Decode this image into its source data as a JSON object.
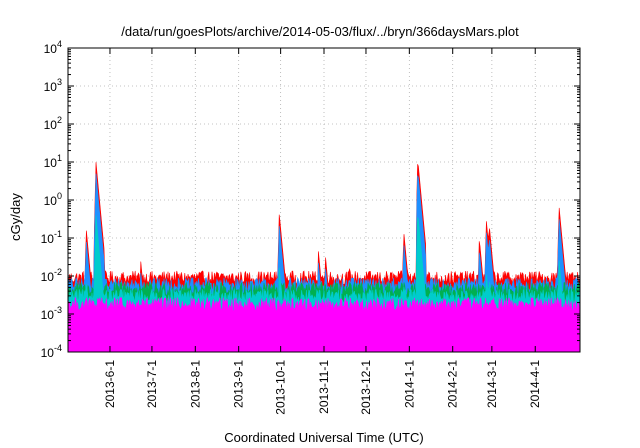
{
  "chart_data": {
    "type": "area",
    "title": "/data/run/goesPlots/archive/2014-05-03/flux/../bryn/366daysMars.plot",
    "xlabel": "Coordinated Universal Time (UTC)",
    "ylabel": "cGy/day",
    "y_scale": "log",
    "ylim": [
      0.0001,
      10000
    ],
    "xlim": [
      "2013-05-02",
      "2014-05-03"
    ],
    "y_ticks": [
      {
        "value": 0.0001,
        "label": "10^-4"
      },
      {
        "value": 0.001,
        "label": "10^-3"
      },
      {
        "value": 0.01,
        "label": "10^-2"
      },
      {
        "value": 0.1,
        "label": "10^-1"
      },
      {
        "value": 1,
        "label": "10^0"
      },
      {
        "value": 10,
        "label": "10^1"
      },
      {
        "value": 100,
        "label": "10^2"
      },
      {
        "value": 1000,
        "label": "10^3"
      },
      {
        "value": 10000,
        "label": "10^4"
      }
    ],
    "x_ticks": [
      "2013-6-1",
      "2013-7-1",
      "2013-8-1",
      "2013-9-1",
      "2013-10-1",
      "2013-11-1",
      "2013-12-1",
      "2014-1-1",
      "2014-2-1",
      "2014-3-1",
      "2014-4-1"
    ],
    "x_tick_dates": [
      "2013-06-01",
      "2013-07-01",
      "2013-08-01",
      "2013-09-01",
      "2013-10-01",
      "2013-11-01",
      "2013-12-01",
      "2014-01-01",
      "2014-02-01",
      "2014-03-01",
      "2014-04-01"
    ],
    "grid": true,
    "legend": "none",
    "baseline_levels": [
      0.009,
      0.006,
      0.0045,
      0.003,
      0.0018
    ],
    "noise_decades": 0.18,
    "events": [
      {
        "date": "2013-05-15",
        "peak": 0.18
      },
      {
        "date": "2013-05-22",
        "peak": 10
      },
      {
        "date": "2013-06-23",
        "peak": 0.025
      },
      {
        "date": "2013-09-30",
        "peak": 0.45
      },
      {
        "date": "2013-10-28",
        "peak": 0.045
      },
      {
        "date": "2013-11-02",
        "peak": 0.035
      },
      {
        "date": "2013-11-19",
        "peak": 0.02
      },
      {
        "date": "2013-12-28",
        "peak": 0.15
      },
      {
        "date": "2014-01-07",
        "peak": 12
      },
      {
        "date": "2014-02-20",
        "peak": 0.1
      },
      {
        "date": "2014-02-25",
        "peak": 0.3
      },
      {
        "date": "2014-02-27",
        "peak": 0.25
      },
      {
        "date": "2014-04-18",
        "peak": 0.7
      }
    ],
    "dips": [
      {
        "date": "2013-05-20",
        "min": 0.00014
      },
      {
        "date": "2014-01-04",
        "min": 0.0001
      },
      {
        "date": "2014-01-11",
        "min": 0.00018
      },
      {
        "date": "2014-03-01",
        "min": 0.0005
      }
    ],
    "series": [
      {
        "color": "#ff0000",
        "level_index": 0,
        "peak_scale": 1.0
      },
      {
        "color": "#1e90ff",
        "level_index": 1,
        "peak_scale": 0.5
      },
      {
        "color": "#00b050",
        "level_index": 2,
        "peak_scale": 0.03
      },
      {
        "color": "#00cccc",
        "level_index": 3,
        "peak_scale": 0.04
      },
      {
        "color": "#ff00ff",
        "level_index": 4,
        "peak_scale": 0.0
      }
    ]
  }
}
